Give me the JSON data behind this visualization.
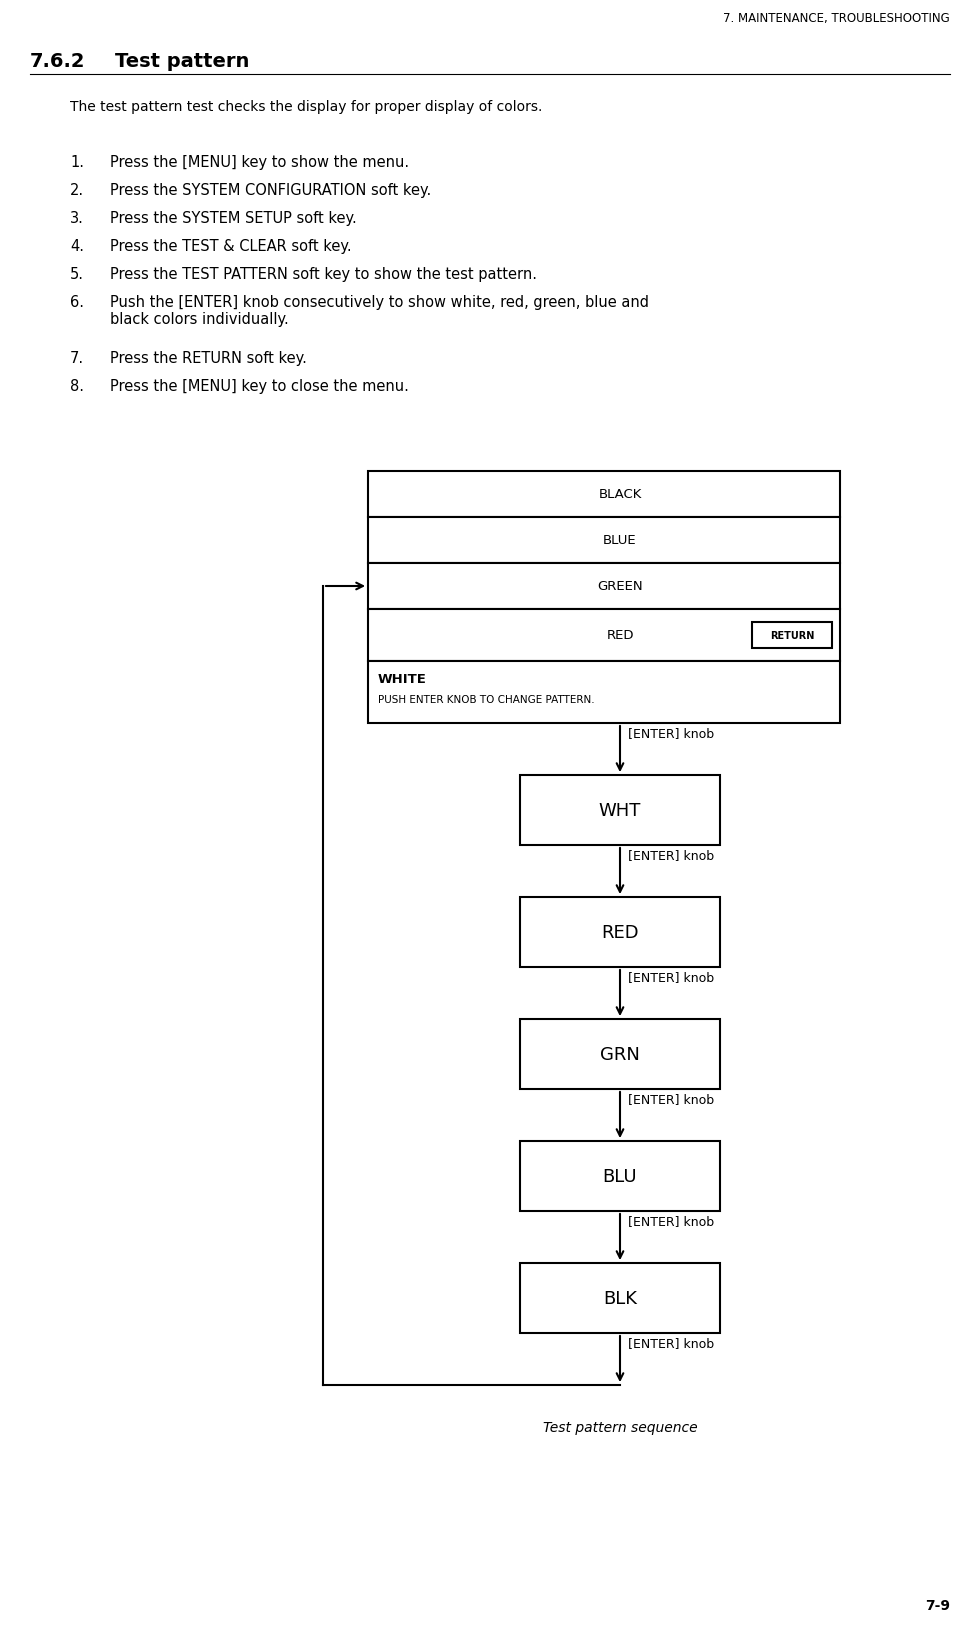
{
  "header": "7. MAINTENANCE, TROUBLESHOOTING",
  "section": "7.6.2",
  "section_title": "Test pattern",
  "intro": "The test pattern test checks the display for proper display of colors.",
  "steps": [
    "Press the [MENU] key to show the menu.",
    "Press the SYSTEM CONFIGURATION soft key.",
    "Press the SYSTEM SETUP soft key.",
    "Press the TEST & CLEAR soft key.",
    "Press the TEST PATTERN soft key to show the test pattern.",
    "Push the [ENTER] knob consecutively to show white, red, green, blue and\nblack colors individually.",
    "Press the RETURN soft key.",
    "Press the [MENU] key to close the menu."
  ],
  "screen_rows": [
    "BLACK",
    "BLUE",
    "GREEN",
    "RED",
    "WHITE"
  ],
  "return_button_text": "RETURN",
  "flow_boxes": [
    "WHT",
    "RED",
    "GRN",
    "BLU",
    "BLK"
  ],
  "enter_label": "[ENTER] knob",
  "caption": "Test pattern sequence",
  "page_number": "7-9",
  "bg_color": "#ffffff",
  "text_color": "#000000",
  "box_border_color": "#000000",
  "arrow_color": "#000000"
}
